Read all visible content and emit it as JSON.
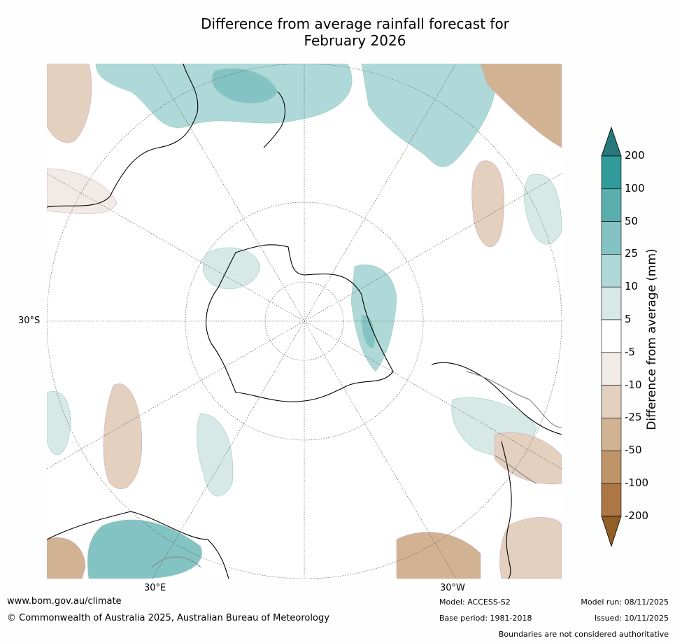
{
  "title_line1": "Difference from average rainfall forecast for",
  "title_line2": "February 2026",
  "map": {
    "lat_label": "30°S",
    "lon_east": "30°E",
    "lon_west": "30°W"
  },
  "colorbar": {
    "label": "Difference from average (mm)",
    "ticks": [
      "200",
      "100",
      "50",
      "25",
      "10",
      "5",
      "-5",
      "-10",
      "-25",
      "-50",
      "-100",
      "-200"
    ],
    "colors": [
      "#27797a",
      "#319a9a",
      "#5aaeae",
      "#84c3c3",
      "#afd9d8",
      "#d6e9e7",
      "#ffffff",
      "#f0ebe6",
      "#e3d0bf",
      "#d1b393",
      "#be9468",
      "#ad7745",
      "#935d26"
    ]
  },
  "footer": {
    "website": "www.bom.gov.au/climate",
    "copyright": "© Commonwealth of Australia 2025, Australian Bureau of Meteorology",
    "model": "Model: ACCESS-S2",
    "base_period": "Base period: 1981-2018",
    "model_run": "Model run: 08/11/2025",
    "issued": "Issued: 10/11/2025",
    "disclaimer": "Boundaries are not considered authoritative"
  }
}
